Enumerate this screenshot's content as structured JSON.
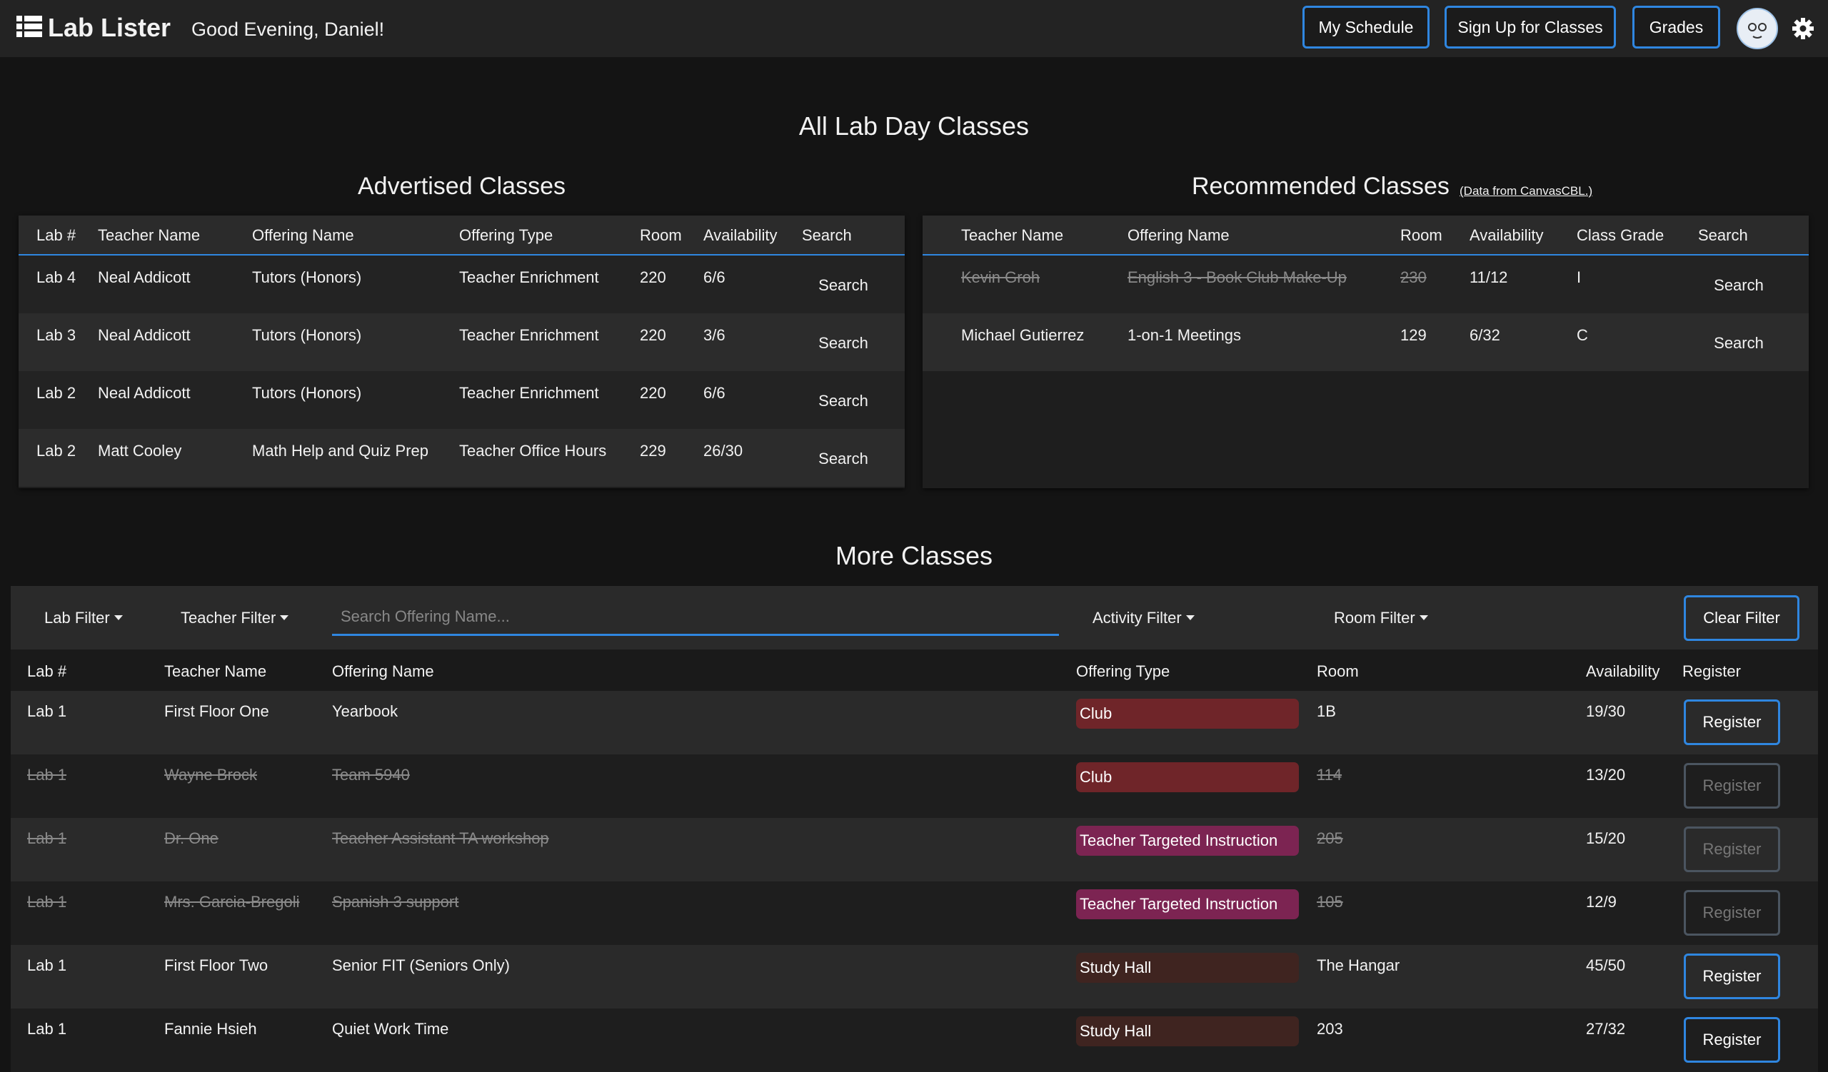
{
  "header": {
    "logo": "Lab Lister",
    "greeting": "Good Evening, Daniel!",
    "nav": [
      "My Schedule",
      "Sign Up for Classes",
      "Grades"
    ]
  },
  "page_title": "All Lab Day Classes",
  "advertised": {
    "title": "Advertised Classes",
    "columns": [
      "Lab #",
      "Teacher Name",
      "Offering Name",
      "Offering Type",
      "Room",
      "Availability",
      "Search"
    ],
    "rows": [
      {
        "cells": [
          "Lab 4",
          "Neal Addicott",
          "Tutors (Honors)",
          "Teacher Enrichment",
          "220",
          "6/6"
        ],
        "action": "Search"
      },
      {
        "cells": [
          "Lab 3",
          "Neal Addicott",
          "Tutors (Honors)",
          "Teacher Enrichment",
          "220",
          "3/6"
        ],
        "action": "Search"
      },
      {
        "cells": [
          "Lab 2",
          "Neal Addicott",
          "Tutors (Honors)",
          "Teacher Enrichment",
          "220",
          "6/6"
        ],
        "action": "Search"
      },
      {
        "cells": [
          "Lab 2",
          "Matt Cooley",
          "Math Help and Quiz Prep",
          "Teacher Office Hours",
          "229",
          "26/30"
        ],
        "action": "Search"
      }
    ]
  },
  "recommended": {
    "title": "Recommended Classes",
    "source": "(Data from CanvasCBL.)",
    "columns": [
      "Teacher Name",
      "Offering Name",
      "Room",
      "Availability",
      "Class Grade",
      "Search"
    ],
    "rows": [
      {
        "cells": [
          "Kevin Groh",
          "English 3 - Book Club Make-Up",
          "230",
          "11/12",
          "I"
        ],
        "action": "Search",
        "struck_cells": 3
      },
      {
        "cells": [
          "Michael Gutierrez",
          "1-on-1 Meetings",
          "129",
          "6/32",
          "C"
        ],
        "action": "Search",
        "struck_cells": 0
      }
    ]
  },
  "more": {
    "title": "More Classes",
    "filters": {
      "lab": "Lab Filter",
      "teacher": "Teacher Filter",
      "search_placeholder": "Search Offering Name...",
      "activity": "Activity Filter",
      "room": "Room Filter",
      "clear": "Clear Filter"
    },
    "columns": [
      "Lab #",
      "Teacher Name",
      "Offering Name",
      "Offering Type",
      "Room",
      "Availability",
      "Register"
    ],
    "rows": [
      {
        "lab": "Lab 1",
        "teacher": "First Floor One",
        "offering": "Yearbook",
        "type": "Club",
        "type_color": "#6f2529",
        "room": "1B",
        "availability": "19/30",
        "action": "Register",
        "available": true
      },
      {
        "lab": "Lab 1",
        "teacher": "Wayne Brock",
        "offering": "Team 5940",
        "type": "Club",
        "type_color": "#6f2529",
        "room": "114",
        "availability": "13/20",
        "action": "Register",
        "available": false
      },
      {
        "lab": "Lab 1",
        "teacher": "Dr. One",
        "offering": "Teacher Assistant TA workshop",
        "type": "Teacher Targeted Instruction",
        "type_color": "#7c2452",
        "room": "205",
        "availability": "15/20",
        "action": "Register",
        "available": false
      },
      {
        "lab": "Lab 1",
        "teacher": "Mrs. Garcia-Bregoli",
        "offering": "Spanish 3 support",
        "type": "Teacher Targeted Instruction",
        "type_color": "#7c2452",
        "room": "105",
        "availability": "12/9",
        "action": "Register",
        "available": false
      },
      {
        "lab": "Lab 1",
        "teacher": "First Floor Two",
        "offering": "Senior FIT (Seniors Only)",
        "type": "Study Hall",
        "type_color": "#3f2420",
        "room": "The Hangar",
        "availability": "45/50",
        "action": "Register",
        "available": true
      },
      {
        "lab": "Lab 1",
        "teacher": "Fannie Hsieh",
        "offering": "Quiet Work Time",
        "type": "Study Hall",
        "type_color": "#3f2420",
        "room": "203",
        "availability": "27/32",
        "action": "Register",
        "available": true
      }
    ]
  }
}
